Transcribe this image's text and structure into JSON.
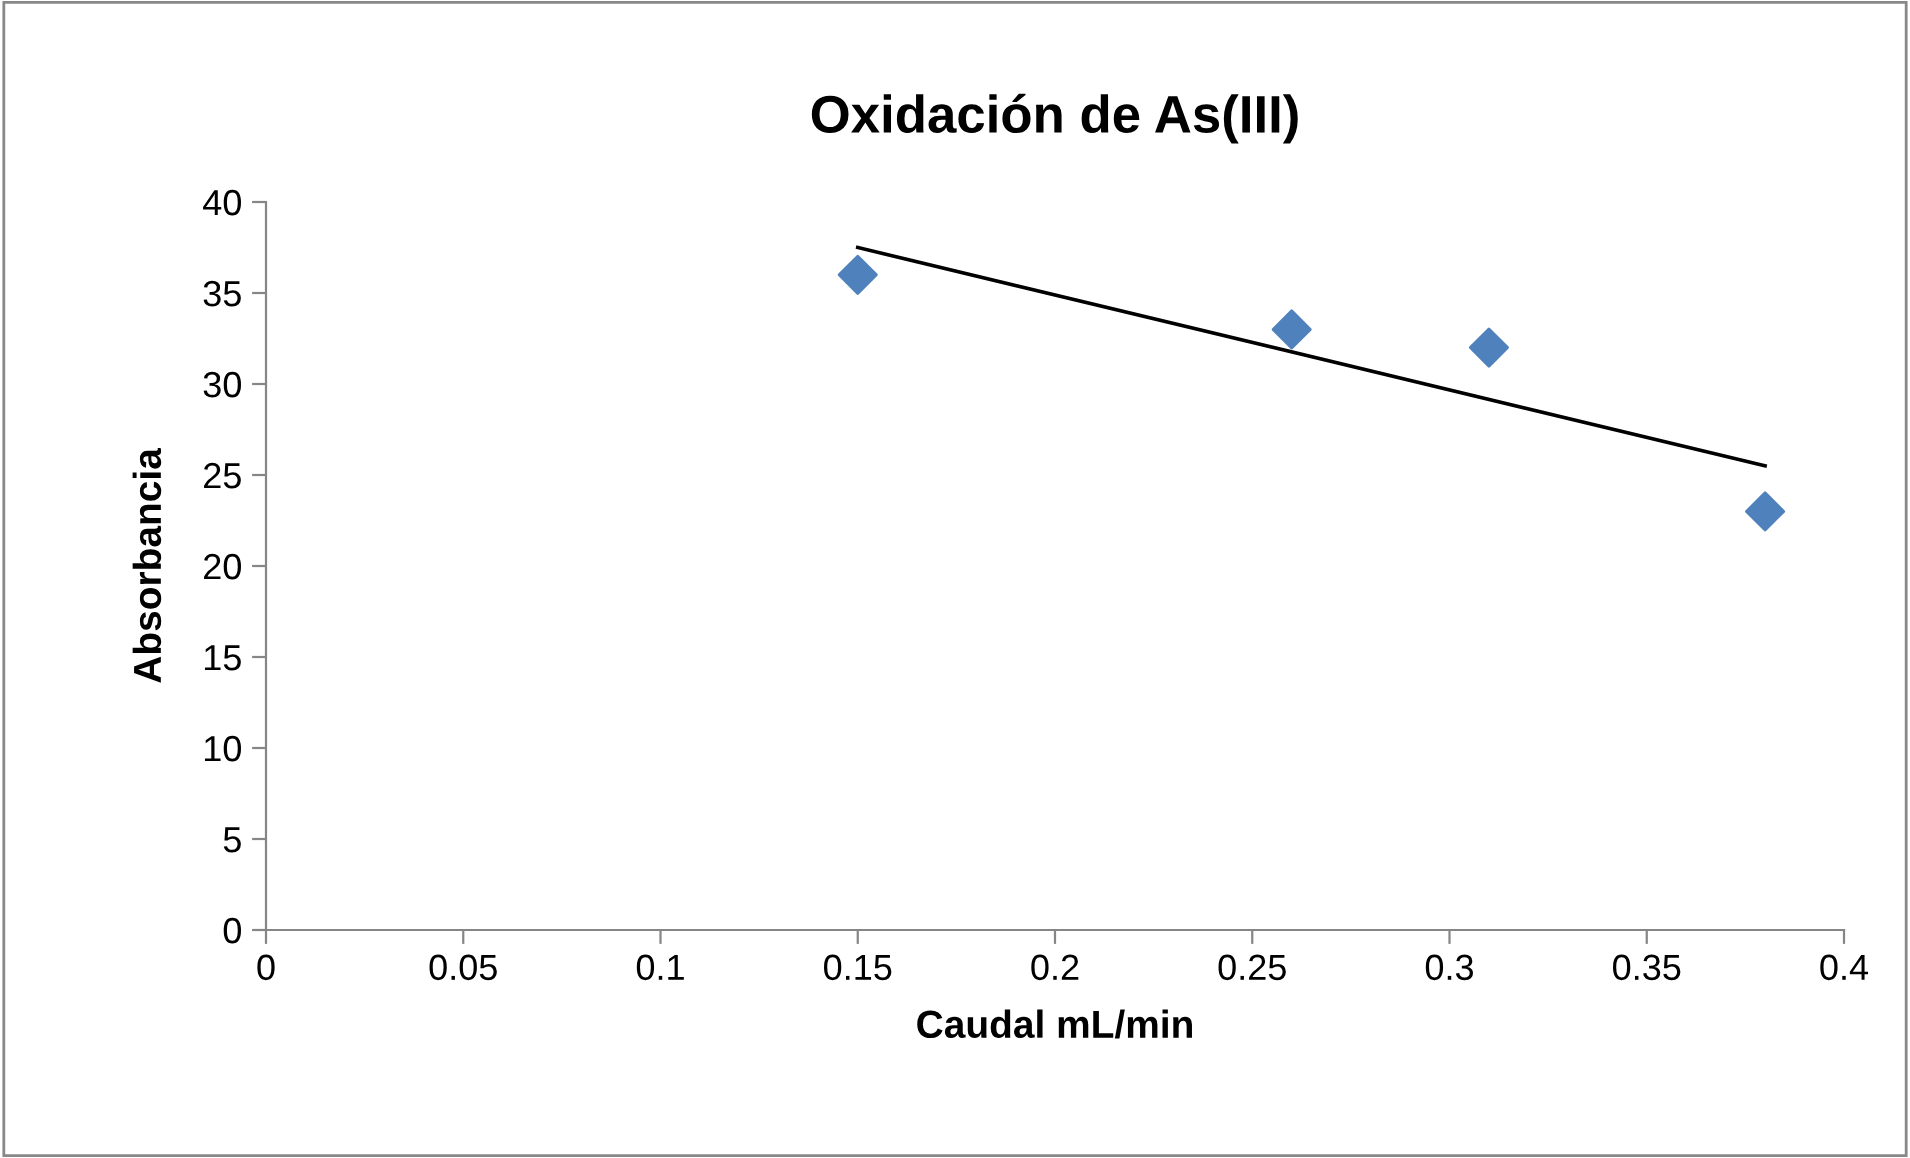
{
  "chart_data": {
    "type": "scatter",
    "title": "Oxidación de As(III)",
    "xlabel": "Caudal mL/min",
    "ylabel": "Absorbancia",
    "series": [
      {
        "color": "#4f81bd",
        "x": [
          0.15,
          0.26,
          0.31,
          0.38
        ],
        "values": [
          36,
          33,
          32,
          23
        ],
        "marker": "diamond"
      },
      {
        "type": "line",
        "color": "#000000",
        "x": [
          0.15,
          0.38
        ],
        "values": [
          37.5,
          25.5
        ],
        "marker": "none",
        "line_style": "solid"
      }
    ],
    "xlim": [
      0,
      0.4
    ],
    "xticks": [
      0,
      0.05,
      0.1,
      0.15,
      0.2,
      0.25,
      0.3,
      0.35,
      0.4
    ],
    "ylim": [
      0,
      40
    ],
    "yticks": [
      0,
      5,
      10,
      15,
      20,
      25,
      30,
      35,
      40
    ],
    "grid": false,
    "legend": false
  }
}
